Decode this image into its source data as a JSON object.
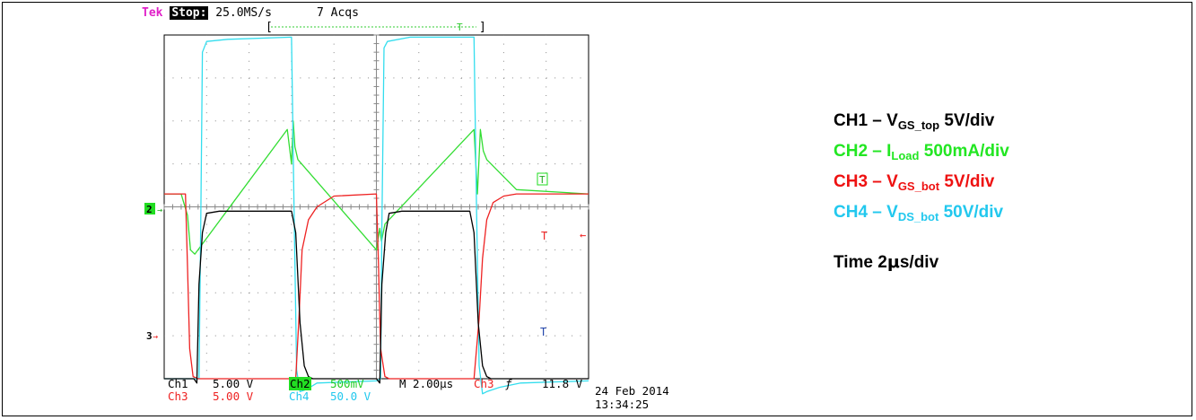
{
  "header": {
    "brand": "Tek",
    "state": "Stop:",
    "sample_rate": "25.0MS/s",
    "acqs": "7 Acqs",
    "trigger_bracket_left": "[",
    "trigger_bracket_right": "]",
    "trigger_marker": "T"
  },
  "colors": {
    "ch1": "#000000",
    "ch2": "#33dd33",
    "ch3": "#ee2222",
    "ch4": "#33ddee",
    "grid": "#888888",
    "magenta": "#e020c8"
  },
  "legend": {
    "ch1": {
      "prefix": "CH1 – V",
      "sub": "GS_top",
      "suffix": " 5V/div"
    },
    "ch2": {
      "prefix": "CH2 – I",
      "sub": "Load",
      "suffix": " 500mA/div"
    },
    "ch3": {
      "prefix": "CH3 – V",
      "sub": "GS_bot",
      "suffix": " 5V/div"
    },
    "ch4": {
      "prefix": "CH4 – V",
      "sub": "DS_bot",
      "suffix": " 50V/div"
    },
    "time": {
      "prefix": "Time 2",
      "mu": "μ",
      "suffix": "s/div"
    }
  },
  "markers": {
    "ch2_level": "2",
    "ch3_level": "3",
    "trig_t": "T",
    "cursor_t": "T"
  },
  "readout": {
    "ch1_name": "Ch1",
    "ch1_scale": "5.00 V",
    "ch2_name": "Ch2",
    "ch2_scale": "500mV",
    "ch3_name": "Ch3",
    "ch3_scale": "5.00 V",
    "ch4_name": "Ch4",
    "ch4_scale": "50.0 V",
    "timebase": "M 2.00µs",
    "trig_src": "Ch3",
    "trig_slope": "ƒ",
    "trig_level": "11.8 V",
    "date": "24 Feb 2014",
    "time": "13:34:25"
  },
  "chart_data": {
    "type": "line",
    "x_unit": "div",
    "y_unit": "div",
    "xlim": [
      0,
      10
    ],
    "ylim": [
      0,
      8
    ],
    "grid": true,
    "series": [
      {
        "name": "CH1",
        "key": "ch1",
        "x": [
          0,
          0.7,
          0.77,
          0.82,
          0.9,
          1.0,
          1.3,
          3.0,
          3.1,
          3.2,
          3.3,
          3.4,
          3.5,
          5.0,
          5.08,
          5.13,
          5.22,
          5.3,
          5.6,
          7.2,
          7.3,
          7.4,
          7.5,
          7.6,
          7.7,
          8.2,
          10
        ],
        "y": [
          0.0,
          0.0,
          -0.1,
          2.2,
          3.4,
          3.85,
          3.9,
          3.9,
          3.4,
          1.3,
          0.3,
          0.05,
          0.0,
          0.0,
          -0.1,
          2.2,
          3.4,
          3.85,
          3.9,
          3.9,
          3.4,
          1.3,
          0.3,
          0.05,
          0.0,
          0.0,
          0.0
        ]
      },
      {
        "name": "CH2",
        "key": "ch2",
        "x": [
          0,
          0.4,
          0.55,
          0.62,
          0.72,
          2.9,
          3.0,
          3.04,
          3.08,
          3.15,
          5.0,
          5.08,
          5.12,
          5.2,
          7.3,
          7.38,
          7.45,
          7.52,
          7.6,
          8.3,
          10
        ],
        "y": [
          4.3,
          4.3,
          3.8,
          3.0,
          2.9,
          5.8,
          5.0,
          6.0,
          5.4,
          5.1,
          3.0,
          3.5,
          3.2,
          3.6,
          5.8,
          4.3,
          5.8,
          5.3,
          5.1,
          4.4,
          4.3
        ]
      },
      {
        "name": "CH3",
        "key": "ch3",
        "x": [
          0,
          0.5,
          0.55,
          0.6,
          0.68,
          0.8,
          0.9,
          3.1,
          3.18,
          3.25,
          3.4,
          3.6,
          4.0,
          5.0,
          5.05,
          5.1,
          5.2,
          5.3,
          7.3,
          7.42,
          7.5,
          7.6,
          7.75,
          8.0,
          8.3,
          10
        ],
        "y": [
          4.3,
          4.3,
          2.6,
          0.7,
          0.05,
          0.0,
          0.0,
          0.0,
          1.5,
          3.0,
          3.7,
          4.0,
          4.25,
          4.3,
          2.6,
          0.7,
          0.05,
          0.0,
          0.0,
          1.4,
          2.8,
          3.7,
          4.1,
          4.25,
          4.3,
          4.3
        ]
      },
      {
        "name": "CH4",
        "key": "ch4",
        "x": [
          0,
          0.82,
          0.86,
          0.9,
          1.0,
          1.5,
          3.0,
          3.06,
          3.12,
          3.2,
          3.35,
          3.6,
          5.0,
          5.1,
          5.13,
          5.18,
          5.26,
          5.8,
          7.3,
          7.36,
          7.42,
          7.5,
          7.6,
          7.9,
          8.4,
          10
        ],
        "y": [
          0.0,
          0.0,
          3.5,
          7.6,
          7.85,
          7.9,
          7.95,
          4.0,
          0.2,
          -0.3,
          -0.25,
          -0.1,
          -0.05,
          0.0,
          3.5,
          7.7,
          7.85,
          7.95,
          7.95,
          4.0,
          0.3,
          -0.35,
          -0.3,
          -0.2,
          -0.1,
          -0.05
        ]
      }
    ]
  }
}
